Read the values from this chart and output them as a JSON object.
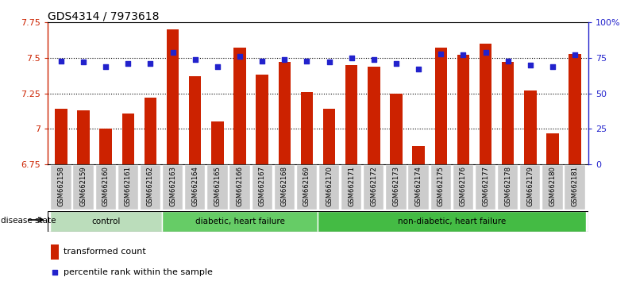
{
  "title": "GDS4314 / 7973618",
  "samples": [
    "GSM662158",
    "GSM662159",
    "GSM662160",
    "GSM662161",
    "GSM662162",
    "GSM662163",
    "GSM662164",
    "GSM662165",
    "GSM662166",
    "GSM662167",
    "GSM662168",
    "GSM662169",
    "GSM662170",
    "GSM662171",
    "GSM662172",
    "GSM662173",
    "GSM662174",
    "GSM662175",
    "GSM662176",
    "GSM662177",
    "GSM662178",
    "GSM662179",
    "GSM662180",
    "GSM662181"
  ],
  "bar_values": [
    7.14,
    7.13,
    7.0,
    7.11,
    7.22,
    7.7,
    7.37,
    7.05,
    7.57,
    7.38,
    7.47,
    7.26,
    7.14,
    7.45,
    7.44,
    7.25,
    6.88,
    7.57,
    7.52,
    7.6,
    7.47,
    7.27,
    6.97,
    7.53
  ],
  "blue_values": [
    73,
    72,
    69,
    71,
    71,
    79,
    74,
    69,
    76,
    73,
    74,
    73,
    72,
    75,
    74,
    71,
    67,
    78,
    77,
    79,
    73,
    70,
    69,
    77
  ],
  "ylim_left": [
    6.75,
    7.75
  ],
  "ylim_right": [
    0,
    100
  ],
  "bar_color": "#cc2200",
  "dot_color": "#2222cc",
  "bg_color": "#ffffff",
  "axis_color_left": "#cc2200",
  "axis_color_right": "#2222cc",
  "yticks_left": [
    6.75,
    7.0,
    7.25,
    7.5,
    7.75
  ],
  "ytick_labels_left": [
    "6.75",
    "7",
    "7.25",
    "7.5",
    "7.75"
  ],
  "yticks_right": [
    0,
    25,
    50,
    75,
    100
  ],
  "ytick_labels_right": [
    "0",
    "25",
    "50",
    "75",
    "100%"
  ],
  "groups": [
    {
      "label": "control",
      "start": 0,
      "end": 5,
      "color": "#bbddbb"
    },
    {
      "label": "diabetic, heart failure",
      "start": 5,
      "end": 12,
      "color": "#66cc66"
    },
    {
      "label": "non-diabetic, heart failure",
      "start": 12,
      "end": 24,
      "color": "#44bb44"
    }
  ],
  "legend_bar_label": "transformed count",
  "legend_dot_label": "percentile rank within the sample",
  "disease_state_label": "disease state",
  "hlines": [
    7.0,
    7.25,
    7.5
  ],
  "bar_width": 0.55
}
